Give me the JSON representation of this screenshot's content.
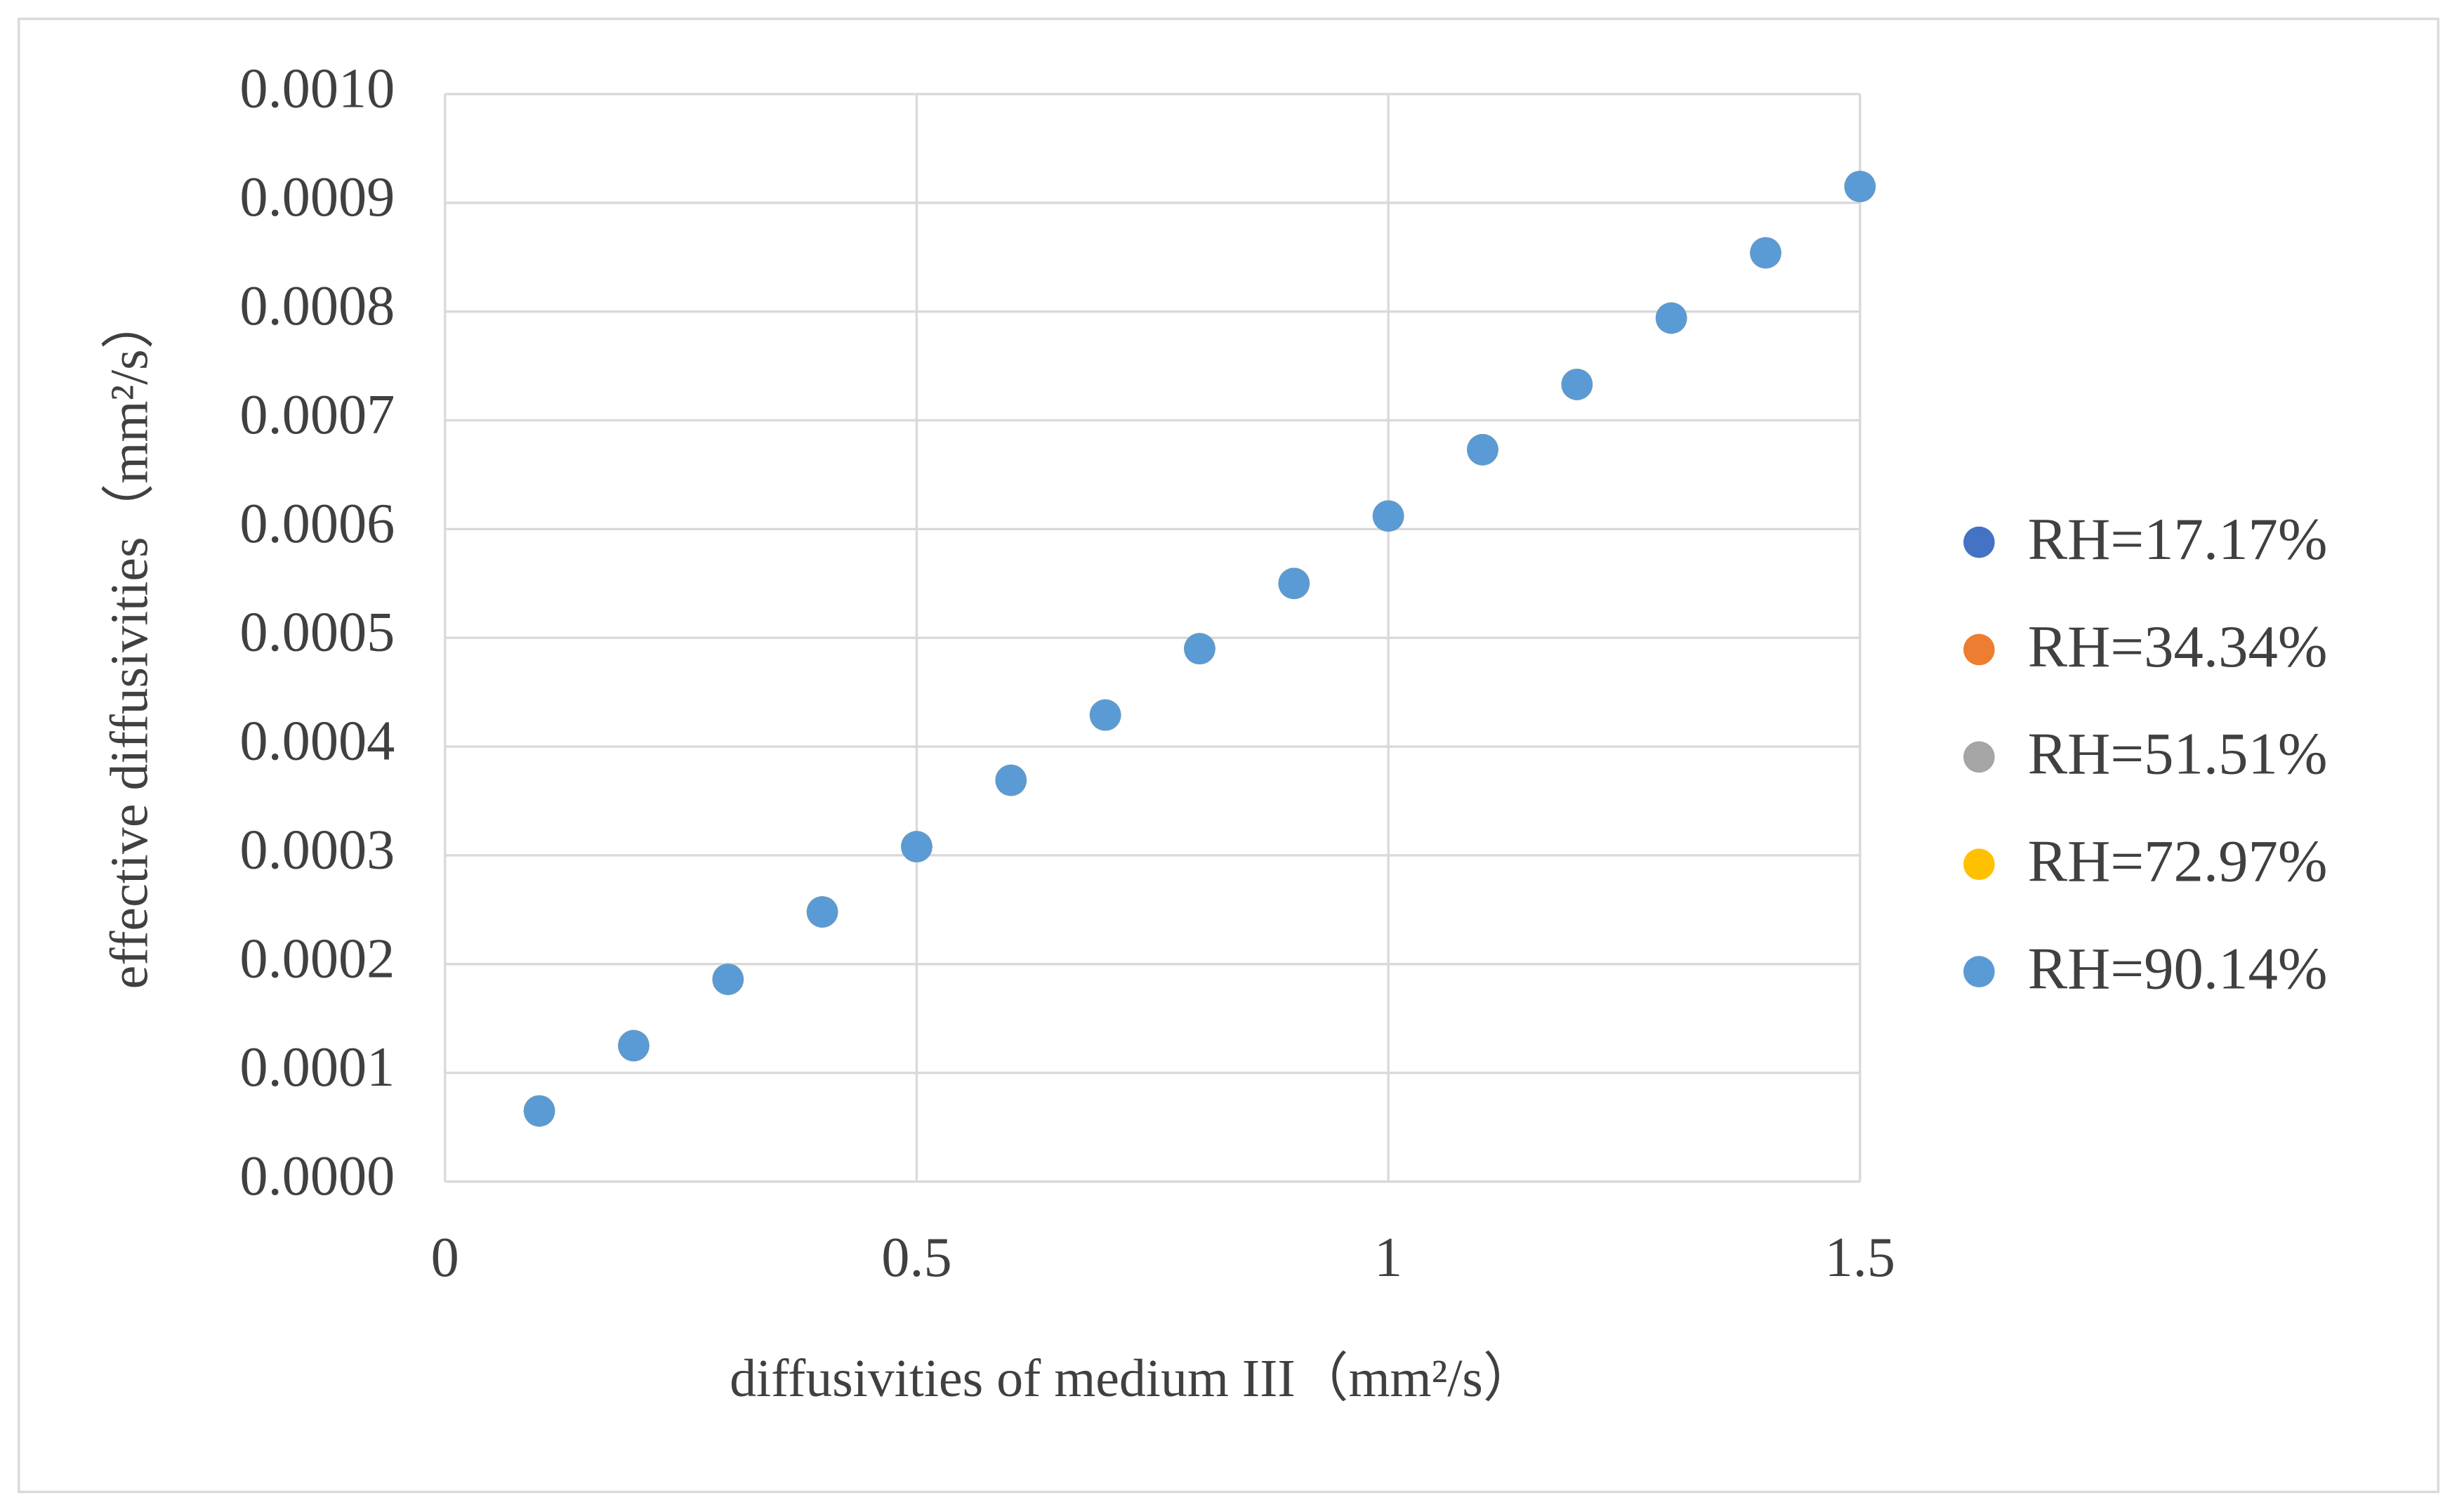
{
  "chart_data": {
    "type": "scatter",
    "x_label": "diffusivities of medium III（mm²/s）",
    "y_label": "effective diffusivities（mm²/s）",
    "x": [
      0.1,
      0.2,
      0.3,
      0.4,
      0.5,
      0.6,
      0.7,
      0.8,
      0.9,
      1.0,
      1.1,
      1.2,
      1.3,
      1.4,
      1.5
    ],
    "series": [
      {
        "name": "RH=17.17%",
        "color": "#4472c4",
        "values": [
          6.5e-05,
          0.000125,
          0.000186,
          0.000248,
          0.000308,
          0.000369,
          0.000429,
          0.00049,
          0.00055,
          0.000612,
          0.000673,
          0.000733,
          0.000794,
          0.000854,
          0.000915
        ]
      },
      {
        "name": "RH=34.34%",
        "color": "#ed7d31",
        "values": [
          6.5e-05,
          0.000125,
          0.000186,
          0.000248,
          0.000308,
          0.000369,
          0.000429,
          0.00049,
          0.00055,
          0.000612,
          0.000673,
          0.000733,
          0.000794,
          0.000854,
          0.000915
        ]
      },
      {
        "name": "RH=51.51%",
        "color": "#a5a5a5",
        "values": [
          6.5e-05,
          0.000125,
          0.000186,
          0.000248,
          0.000308,
          0.000369,
          0.000429,
          0.00049,
          0.00055,
          0.000612,
          0.000673,
          0.000733,
          0.000794,
          0.000854,
          0.000915
        ]
      },
      {
        "name": "RH=72.97%",
        "color": "#ffc000",
        "values": [
          6.5e-05,
          0.000125,
          0.000186,
          0.000248,
          0.000308,
          0.000369,
          0.000429,
          0.00049,
          0.00055,
          0.000612,
          0.000673,
          0.000733,
          0.000794,
          0.000854,
          0.000915
        ]
      },
      {
        "name": "RH=90.14%",
        "color": "#5b9bd5",
        "values": [
          6.5e-05,
          0.000125,
          0.000186,
          0.000248,
          0.000308,
          0.000369,
          0.000429,
          0.00049,
          0.00055,
          0.000612,
          0.000673,
          0.000733,
          0.000794,
          0.000854,
          0.000915
        ]
      }
    ],
    "xlim": [
      0,
      1.5
    ],
    "xticks": [
      0,
      0.5,
      1,
      1.5
    ],
    "ylim": [
      0,
      0.001
    ],
    "yticks": [
      {
        "value": 0,
        "label": "0.0000"
      },
      {
        "value": 0.0001,
        "label": "0.0001"
      },
      {
        "value": 0.0002,
        "label": "0.0002"
      },
      {
        "value": 0.0003,
        "label": "0.0003"
      },
      {
        "value": 0.0004,
        "label": "0.0004"
      },
      {
        "value": 0.0005,
        "label": "0.0005"
      },
      {
        "value": 0.0006,
        "label": "0.0006"
      },
      {
        "value": 0.0007,
        "label": "0.0007"
      },
      {
        "value": 0.0008,
        "label": "0.0008"
      },
      {
        "value": 0.0009,
        "label": "0.0009"
      },
      {
        "value": 0.001,
        "label": "0.0010"
      }
    ],
    "grid": true,
    "legend": "right"
  }
}
